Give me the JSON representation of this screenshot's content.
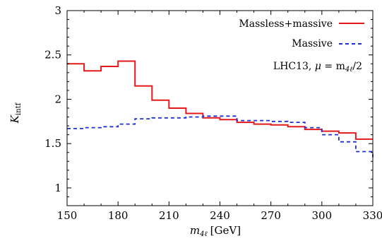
{
  "chart_data": {
    "type": "line",
    "style": "step",
    "xlabel": "m4ℓ [GeV]",
    "xlabel_main": "m",
    "xlabel_sub": "4ℓ",
    "xlabel_unit": "[GeV]",
    "ylabel_main": "K",
    "ylabel_sub": "intf",
    "xlim": [
      150,
      330
    ],
    "ylim": [
      0.8,
      3
    ],
    "xticks": [
      "150",
      "180",
      "210",
      "240",
      "270",
      "300",
      "330"
    ],
    "yticks": [
      "1",
      "1.5",
      "2",
      "2.5",
      "3"
    ],
    "xtick_values": [
      150,
      180,
      210,
      240,
      270,
      300,
      330
    ],
    "ytick_values": [
      1,
      1.5,
      2,
      2.5,
      3
    ],
    "bin_edges": [
      150,
      160,
      170,
      180,
      190,
      200,
      210,
      220,
      230,
      240,
      250,
      260,
      270,
      280,
      290,
      300,
      310,
      320,
      330
    ],
    "series": [
      {
        "name": "Massless+massive",
        "color": "#e31a1c",
        "dash": "solid",
        "values": [
          2.4,
          2.32,
          2.37,
          2.43,
          2.15,
          1.99,
          1.9,
          1.84,
          1.79,
          1.77,
          1.74,
          1.72,
          1.71,
          1.69,
          1.66,
          1.64,
          1.62,
          1.55
        ]
      },
      {
        "name": "Massive",
        "color": "#1f2fd1",
        "dash": "dashed",
        "values": [
          1.67,
          1.68,
          1.69,
          1.72,
          1.78,
          1.79,
          1.79,
          1.8,
          1.81,
          1.81,
          1.76,
          1.76,
          1.75,
          1.74,
          1.68,
          1.6,
          1.52,
          1.41
        ],
        "tail_end": 1.32
      }
    ],
    "annotation_prefix": "LHC13, ",
    "annotation_mu": "μ",
    "annotation_eq": " = m",
    "annotation_sub": "4ℓ",
    "annotation_suffix": "/2",
    "legend_position": "top-right",
    "grid": false
  }
}
